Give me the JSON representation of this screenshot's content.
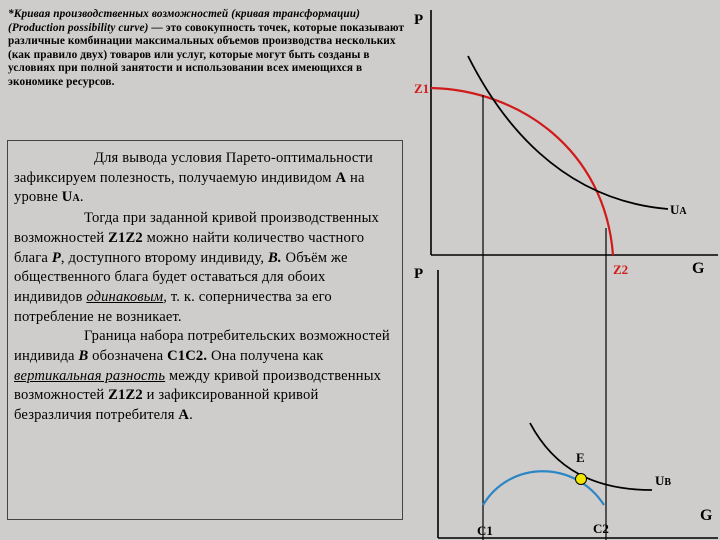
{
  "definition": {
    "term": "*Кривая производственных возможностей (кривая трансформации)",
    "term_en": "(Production possibility curve)",
    "body": " — это совокупность точек, которые показывают различные комбинации максимальных объемов производства нескольких (как правило двух) товаров или услуг, которые могут быть созданы в условиях при полной занятости и использовании всех имеющихся в экономике ресурсов."
  },
  "box": {
    "p1_a": "Для вывода условия Парето-оптимальности зафиксируем полезность, получаемую индивидом ",
    "p1_A": "А",
    "p1_b": " на уровне ",
    "p1_U": "U",
    "p1_Usub": "A",
    "p1_c": ".",
    "p2_a": "Тогда при заданной кривой производственных возможностей ",
    "p2_Z1": "Z1Z2",
    "p2_b": " можно найти количество частного блага ",
    "p2_P": "P",
    "p2_c": ", доступного второму индивиду, ",
    "p2_B": "В.",
    "p2_d": " Объём же общественного блага будет оставаться для обоих индивидов ",
    "p2_same": "одинаковым",
    "p2_e": ", т. к. соперничества за его потребление не возникает.",
    "p3_a": "Граница набора потребительских возможностей индивида ",
    "p3_B": "В",
    "p3_b": " обозначена ",
    "p3_C": "С1С2.",
    "p3_c": " Она получена как ",
    "p3_vert": "вертикальная разность",
    "p3_d": " между кривой производственных возможностей ",
    "p3_Z": "Z1Z2",
    "p3_e": " и зафиксированной кривой безразличия потребителя ",
    "p3_A": "А",
    "p3_f": "."
  },
  "graph_top": {
    "y_axis": "P",
    "x_axis": "G",
    "z1": "Z1",
    "z2": "Z2",
    "curve_label": "U",
    "curve_sub": "A"
  },
  "graph_bottom": {
    "y_axis": "P",
    "x_axis": "G",
    "point": "E",
    "c1": "C1",
    "c2": "C2",
    "curve_label": "U",
    "curve_sub": "B"
  },
  "colors": {
    "ppf": "#d11a1a",
    "consumption_frontier": "#2b86c5",
    "indifference": "#000000",
    "point_E": "#f2e600"
  }
}
